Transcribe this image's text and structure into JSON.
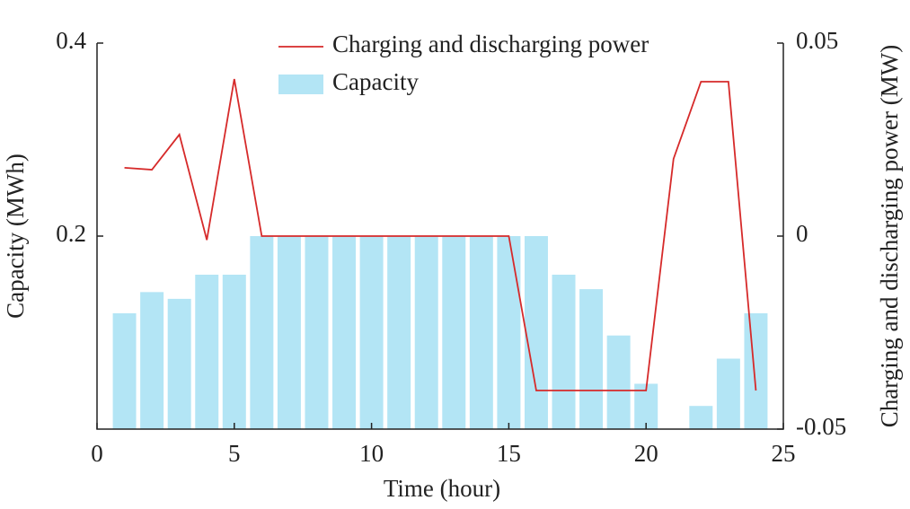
{
  "chart_data": {
    "type": "bar-line",
    "x_label": "Time (hour)",
    "y_label": "Capacity (MWh)",
    "y2_label": "Charging and discharging power (MW)",
    "x": [
      1,
      2,
      3,
      4,
      5,
      6,
      7,
      8,
      9,
      10,
      11,
      12,
      13,
      14,
      15,
      16,
      17,
      18,
      19,
      20,
      21,
      22,
      23,
      24
    ],
    "series": [
      {
        "name": "Charging and discharging power",
        "color": "#d62a2a",
        "type": "line",
        "axis": "y2",
        "values": [
          0.0177,
          0.0172,
          0.0263,
          -0.001,
          0.0407,
          0,
          0,
          0,
          0,
          0,
          0,
          0,
          0,
          0,
          0,
          -0.04,
          -0.04,
          -0.04,
          -0.04,
          -0.04,
          0.02,
          0.04,
          0.04,
          -0.04
        ]
      },
      {
        "name": "Capacity",
        "color": "#b3e5f5",
        "type": "bar",
        "values": [
          0.12,
          0.142,
          0.135,
          0.16,
          0.16,
          0.2,
          0.2,
          0.2,
          0.2,
          0.2,
          0.2,
          0.2,
          0.2,
          0.2,
          0.2,
          0.2,
          0.16,
          0.145,
          0.097,
          0.047,
          0,
          0.024,
          0.073,
          0.12
        ]
      }
    ],
    "xlim": [
      0,
      25
    ],
    "xticks": [
      0,
      5,
      10,
      15,
      20,
      25
    ],
    "ylim": [
      0,
      0.4
    ],
    "yticks": [
      0.2,
      0.4
    ],
    "y2lim": [
      -0.05,
      0.05
    ],
    "y2ticks": [
      -0.05,
      0,
      0.05
    ]
  }
}
